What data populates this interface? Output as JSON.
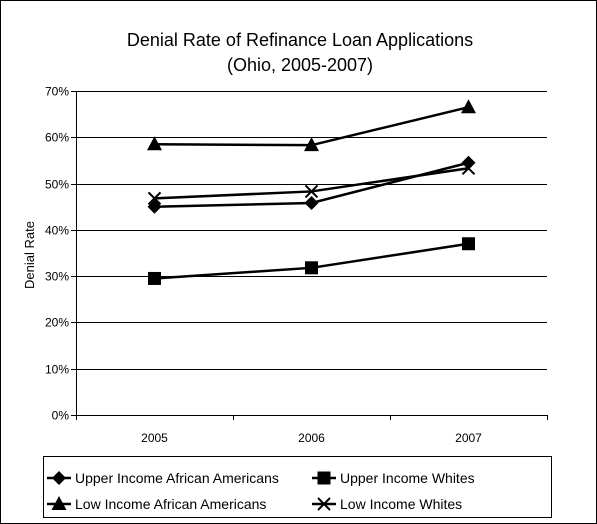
{
  "chart_data": {
    "type": "line",
    "title": "Denial Rate of Refinance Loan Applications",
    "subtitle": "(Ohio, 2005-2007)",
    "xlabel": "",
    "ylabel": "Denial Rate",
    "categories": [
      "2005",
      "2006",
      "2007"
    ],
    "ylim": [
      0,
      70
    ],
    "yticks": [
      "0%",
      "10%",
      "20%",
      "30%",
      "40%",
      "50%",
      "60%",
      "70%"
    ],
    "grid": true,
    "legend_position": "bottom",
    "series": [
      {
        "name": "Upper Income African Americans",
        "marker": "diamond",
        "values": [
          45.0,
          45.8,
          54.5
        ]
      },
      {
        "name": "Upper Income Whites",
        "marker": "square",
        "values": [
          29.5,
          31.8,
          37.0
        ]
      },
      {
        "name": "Low Income African Americans",
        "marker": "triangle",
        "values": [
          58.5,
          58.3,
          66.5
        ]
      },
      {
        "name": "Low Income Whites",
        "marker": "x",
        "values": [
          46.8,
          48.3,
          53.3
        ]
      }
    ],
    "colors": {
      "line": "#000000",
      "grid": "#000000",
      "background": "#ffffff"
    }
  }
}
